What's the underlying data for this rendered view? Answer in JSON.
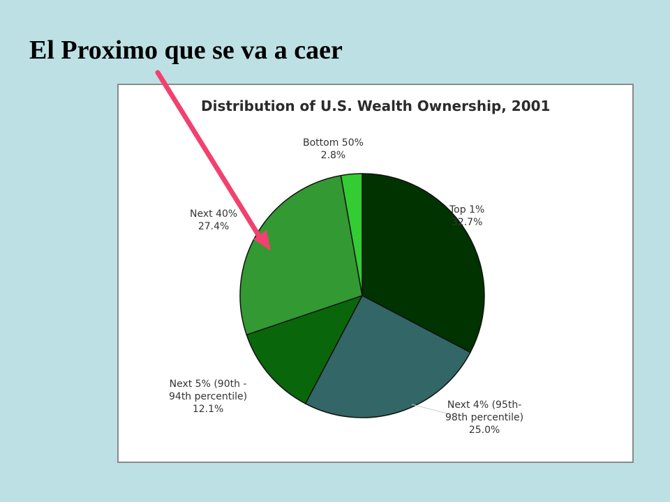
{
  "slide": {
    "title": "El Proximo que se va a caer"
  },
  "colors": {
    "background": "#bde0e4",
    "arrow": "#f2416f"
  },
  "chart_data": {
    "type": "pie",
    "title": "Distribution of U.S. Wealth Ownership, 2001",
    "slices": [
      {
        "label_lines": [
          "Top 1%",
          "32.7%"
        ],
        "value": 32.7,
        "color": "#013301"
      },
      {
        "label_lines": [
          "Next 4% (95th-",
          "98th percentile)",
          "25.0%"
        ],
        "value": 25.0,
        "color": "#336666"
      },
      {
        "label_lines": [
          "Next 5% (90th -",
          "94th percentile)",
          "12.1%"
        ],
        "value": 12.1,
        "color": "#0a660a"
      },
      {
        "label_lines": [
          "Next 40%",
          "27.4%"
        ],
        "value": 27.4,
        "color": "#339933"
      },
      {
        "label_lines": [
          "Bottom 50%",
          "2.8%"
        ],
        "value": 2.8,
        "color": "#33cc33"
      }
    ]
  }
}
